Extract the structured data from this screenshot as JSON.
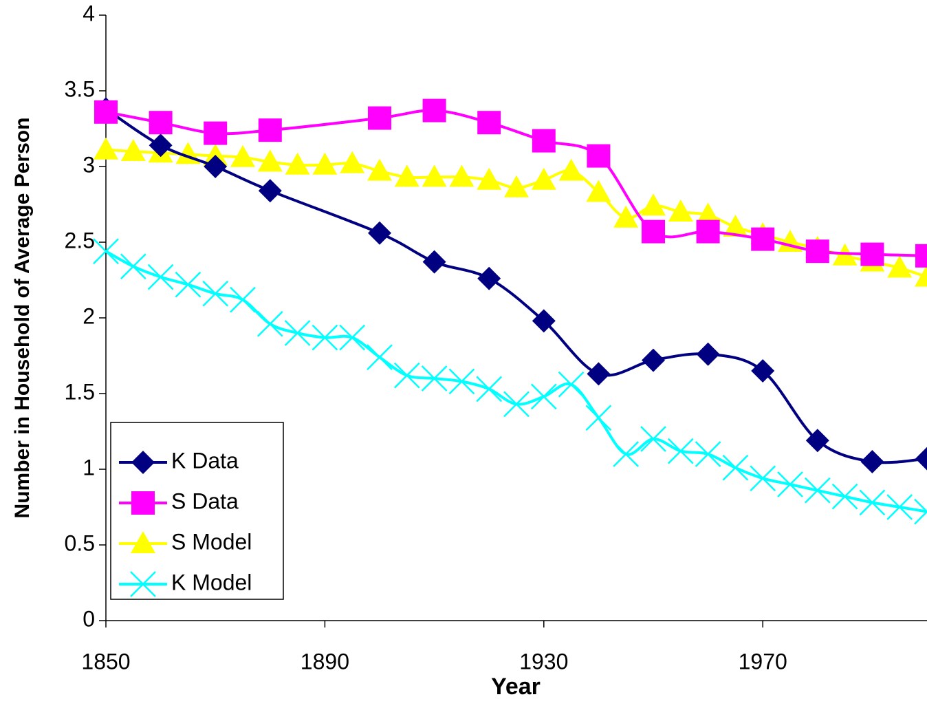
{
  "chart_data": {
    "type": "line",
    "x_label": "Year",
    "y_label": "Number in Household of Average Person",
    "xlim": [
      1850,
      2000
    ],
    "xticks": [
      1850,
      1890,
      1930,
      1970
    ],
    "ylim": [
      0,
      4
    ],
    "yticks": [
      0,
      0.5,
      1,
      1.5,
      2,
      2.5,
      3,
      3.5,
      4
    ],
    "legend": "lower left",
    "series": [
      {
        "name": "K Data",
        "color": "#000080",
        "marker": "diamond",
        "x": [
          1850,
          1860,
          1870,
          1880,
          1900,
          1910,
          1920,
          1930,
          1940,
          1950,
          1960,
          1970,
          1980,
          1990,
          2000
        ],
        "values": [
          3.38,
          3.14,
          3.0,
          2.84,
          2.56,
          2.37,
          2.26,
          1.98,
          1.63,
          1.72,
          1.76,
          1.65,
          1.19,
          1.05,
          1.07
        ]
      },
      {
        "name": "S Data",
        "color": "#ff00ff",
        "marker": "square",
        "x": [
          1850,
          1860,
          1870,
          1880,
          1900,
          1910,
          1920,
          1930,
          1940,
          1950,
          1960,
          1970,
          1980,
          1990,
          2000
        ],
        "values": [
          3.36,
          3.29,
          3.22,
          3.24,
          3.32,
          3.37,
          3.29,
          3.17,
          3.07,
          2.57,
          2.57,
          2.52,
          2.44,
          2.42,
          2.41
        ]
      },
      {
        "name": "S Model",
        "color": "#ffff00",
        "marker": "triangle",
        "x": [
          1850,
          1855,
          1860,
          1865,
          1870,
          1875,
          1880,
          1885,
          1890,
          1895,
          1900,
          1905,
          1910,
          1915,
          1920,
          1925,
          1930,
          1935,
          1940,
          1945,
          1950,
          1955,
          1960,
          1965,
          1970,
          1975,
          1980,
          1985,
          1990,
          1995,
          2000
        ],
        "values": [
          3.11,
          3.1,
          3.09,
          3.08,
          3.07,
          3.06,
          3.03,
          3.01,
          3.01,
          3.02,
          2.97,
          2.93,
          2.93,
          2.93,
          2.91,
          2.86,
          2.91,
          2.97,
          2.83,
          2.66,
          2.74,
          2.7,
          2.68,
          2.6,
          2.55,
          2.5,
          2.46,
          2.41,
          2.37,
          2.33,
          2.27
        ]
      },
      {
        "name": "K Model",
        "color": "#00ffff",
        "marker": "x",
        "x": [
          1850,
          1855,
          1860,
          1865,
          1870,
          1875,
          1880,
          1885,
          1890,
          1895,
          1900,
          1905,
          1910,
          1915,
          1920,
          1925,
          1930,
          1935,
          1940,
          1945,
          1950,
          1955,
          1960,
          1965,
          1970,
          1975,
          1980,
          1985,
          1990,
          1995,
          2000
        ],
        "values": [
          2.44,
          2.34,
          2.27,
          2.22,
          2.16,
          2.12,
          1.96,
          1.9,
          1.87,
          1.87,
          1.74,
          1.62,
          1.6,
          1.58,
          1.53,
          1.43,
          1.48,
          1.56,
          1.34,
          1.1,
          1.2,
          1.12,
          1.1,
          1.01,
          0.94,
          0.9,
          0.86,
          0.82,
          0.78,
          0.75,
          0.72
        ]
      }
    ]
  }
}
